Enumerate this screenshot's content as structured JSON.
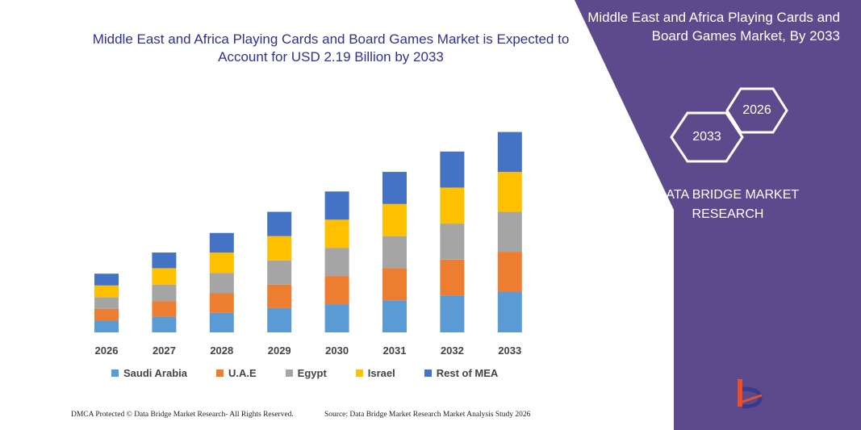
{
  "chart_data": {
    "type": "bar",
    "stacked": true,
    "title": "Middle East and Africa Playing Cards and Board Games Market is Expected to Account for USD 2.19 Billion by 2033",
    "categories": [
      "2026",
      "2027",
      "2028",
      "2029",
      "2030",
      "2031",
      "2032",
      "2033"
    ],
    "series": [
      {
        "name": "Saudi Arabia",
        "values": [
          15,
          20,
          25,
          31,
          36,
          41,
          47,
          52
        ]
      },
      {
        "name": "U.A.E",
        "values": [
          15,
          20,
          25,
          30,
          36,
          41,
          46,
          51
        ]
      },
      {
        "name": "Egypt",
        "values": [
          15,
          21,
          26,
          31,
          36,
          41,
          46,
          51
        ]
      },
      {
        "name": "Israel",
        "values": [
          15,
          21,
          26,
          31,
          36,
          41,
          46,
          51
        ]
      },
      {
        "name": "Rest of MEA",
        "values": [
          15,
          20,
          25,
          31,
          36,
          41,
          46,
          51
        ]
      }
    ],
    "colors": [
      "#5b9bd5",
      "#ed7d31",
      "#a5a5a5",
      "#ffc000",
      "#4472c4"
    ],
    "legend_position": "bottom",
    "ylim": [
      0,
      270
    ],
    "grid": false,
    "xlabel": "",
    "ylabel": ""
  },
  "panel": {
    "title": "Middle East and Africa Playing Cards and Board Games Market, By 2033",
    "hex_back": "2026",
    "hex_front": "2033",
    "brand": "DATA BRIDGE MARKET RESEARCH",
    "color": "#5c4a8c"
  },
  "footer": {
    "left": "DMCA Protected © Data Bridge Market Research- All Rights Reserved.",
    "right": "Source: Data Bridge Market Research Market Analysis Study 2026"
  }
}
